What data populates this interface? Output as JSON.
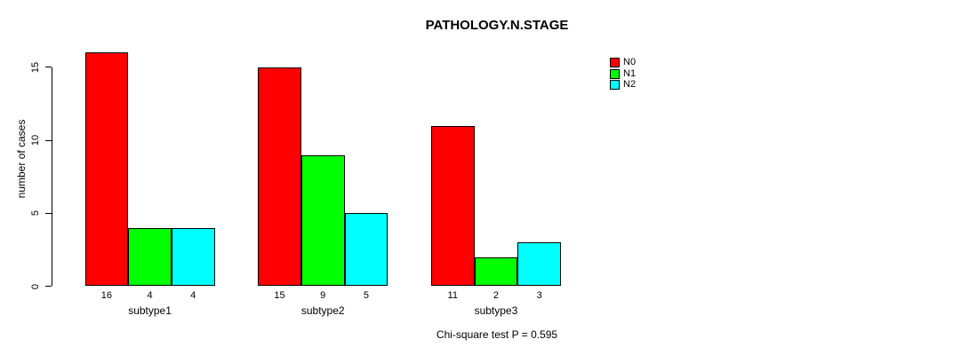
{
  "title": "PATHOLOGY.N.STAGE",
  "footnote": "Chi-square test P = 0.595",
  "colors": {
    "n0": "#ff0000",
    "n1": "#00ff00",
    "n2": "#00ffff",
    "axis": "#000000",
    "background": "#ffffff"
  },
  "legend": {
    "position": "top-right",
    "entries": [
      {
        "label": "N0",
        "color": "#ff0000"
      },
      {
        "label": "N1",
        "color": "#00ff00"
      },
      {
        "label": "N2",
        "color": "#00ffff"
      }
    ]
  },
  "chart_data": {
    "type": "bar",
    "title": "PATHOLOGY.N.STAGE",
    "xlabel": "",
    "ylabel": "number of cases",
    "categories": [
      "subtype1",
      "subtype2",
      "subtype3"
    ],
    "series": [
      {
        "name": "N0",
        "color": "#ff0000",
        "values": [
          16,
          15,
          11
        ]
      },
      {
        "name": "N1",
        "color": "#00ff00",
        "values": [
          4,
          9,
          2
        ]
      },
      {
        "name": "N2",
        "color": "#00ffff",
        "values": [
          4,
          5,
          3
        ]
      }
    ],
    "bar_value_labels": [
      [
        16,
        4,
        4
      ],
      [
        15,
        9,
        5
      ],
      [
        11,
        2,
        3
      ]
    ],
    "yticks": [
      0,
      5,
      10,
      15
    ],
    "ylim": [
      0,
      16
    ],
    "grid": false,
    "legend_position": "top-right",
    "annotation": "Chi-square test P = 0.595"
  }
}
